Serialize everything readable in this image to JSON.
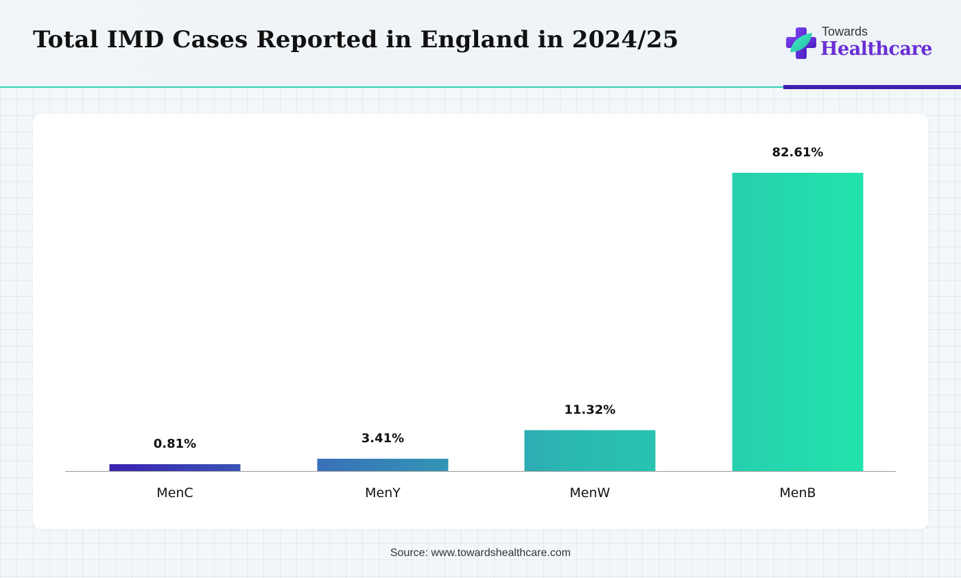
{
  "title": "Total IMD Cases Reported in England in 2024/25",
  "logo": {
    "top": "Towards",
    "bottom": "Healthcare"
  },
  "source": "Source: www.towardshealthcare.com",
  "colors": {
    "accent_teal": "#2fd3b0",
    "accent_purple": "#3f1fb0",
    "brand": "#6a2fd6",
    "bar_start": "#3a1fb0",
    "bar_end": "#22e3ac"
  },
  "chart_data": {
    "type": "bar",
    "title": "",
    "xlabel": "",
    "ylabel": "",
    "categories": [
      "MenC",
      "MenY",
      "MenW",
      "MenB"
    ],
    "values": [
      0.81,
      3.41,
      11.32,
      82.61
    ],
    "data_labels": [
      "0.81%",
      "3.41%",
      "11.32%",
      "82.61%"
    ],
    "ylim": [
      0,
      100
    ],
    "grid": false,
    "legend": "none"
  }
}
